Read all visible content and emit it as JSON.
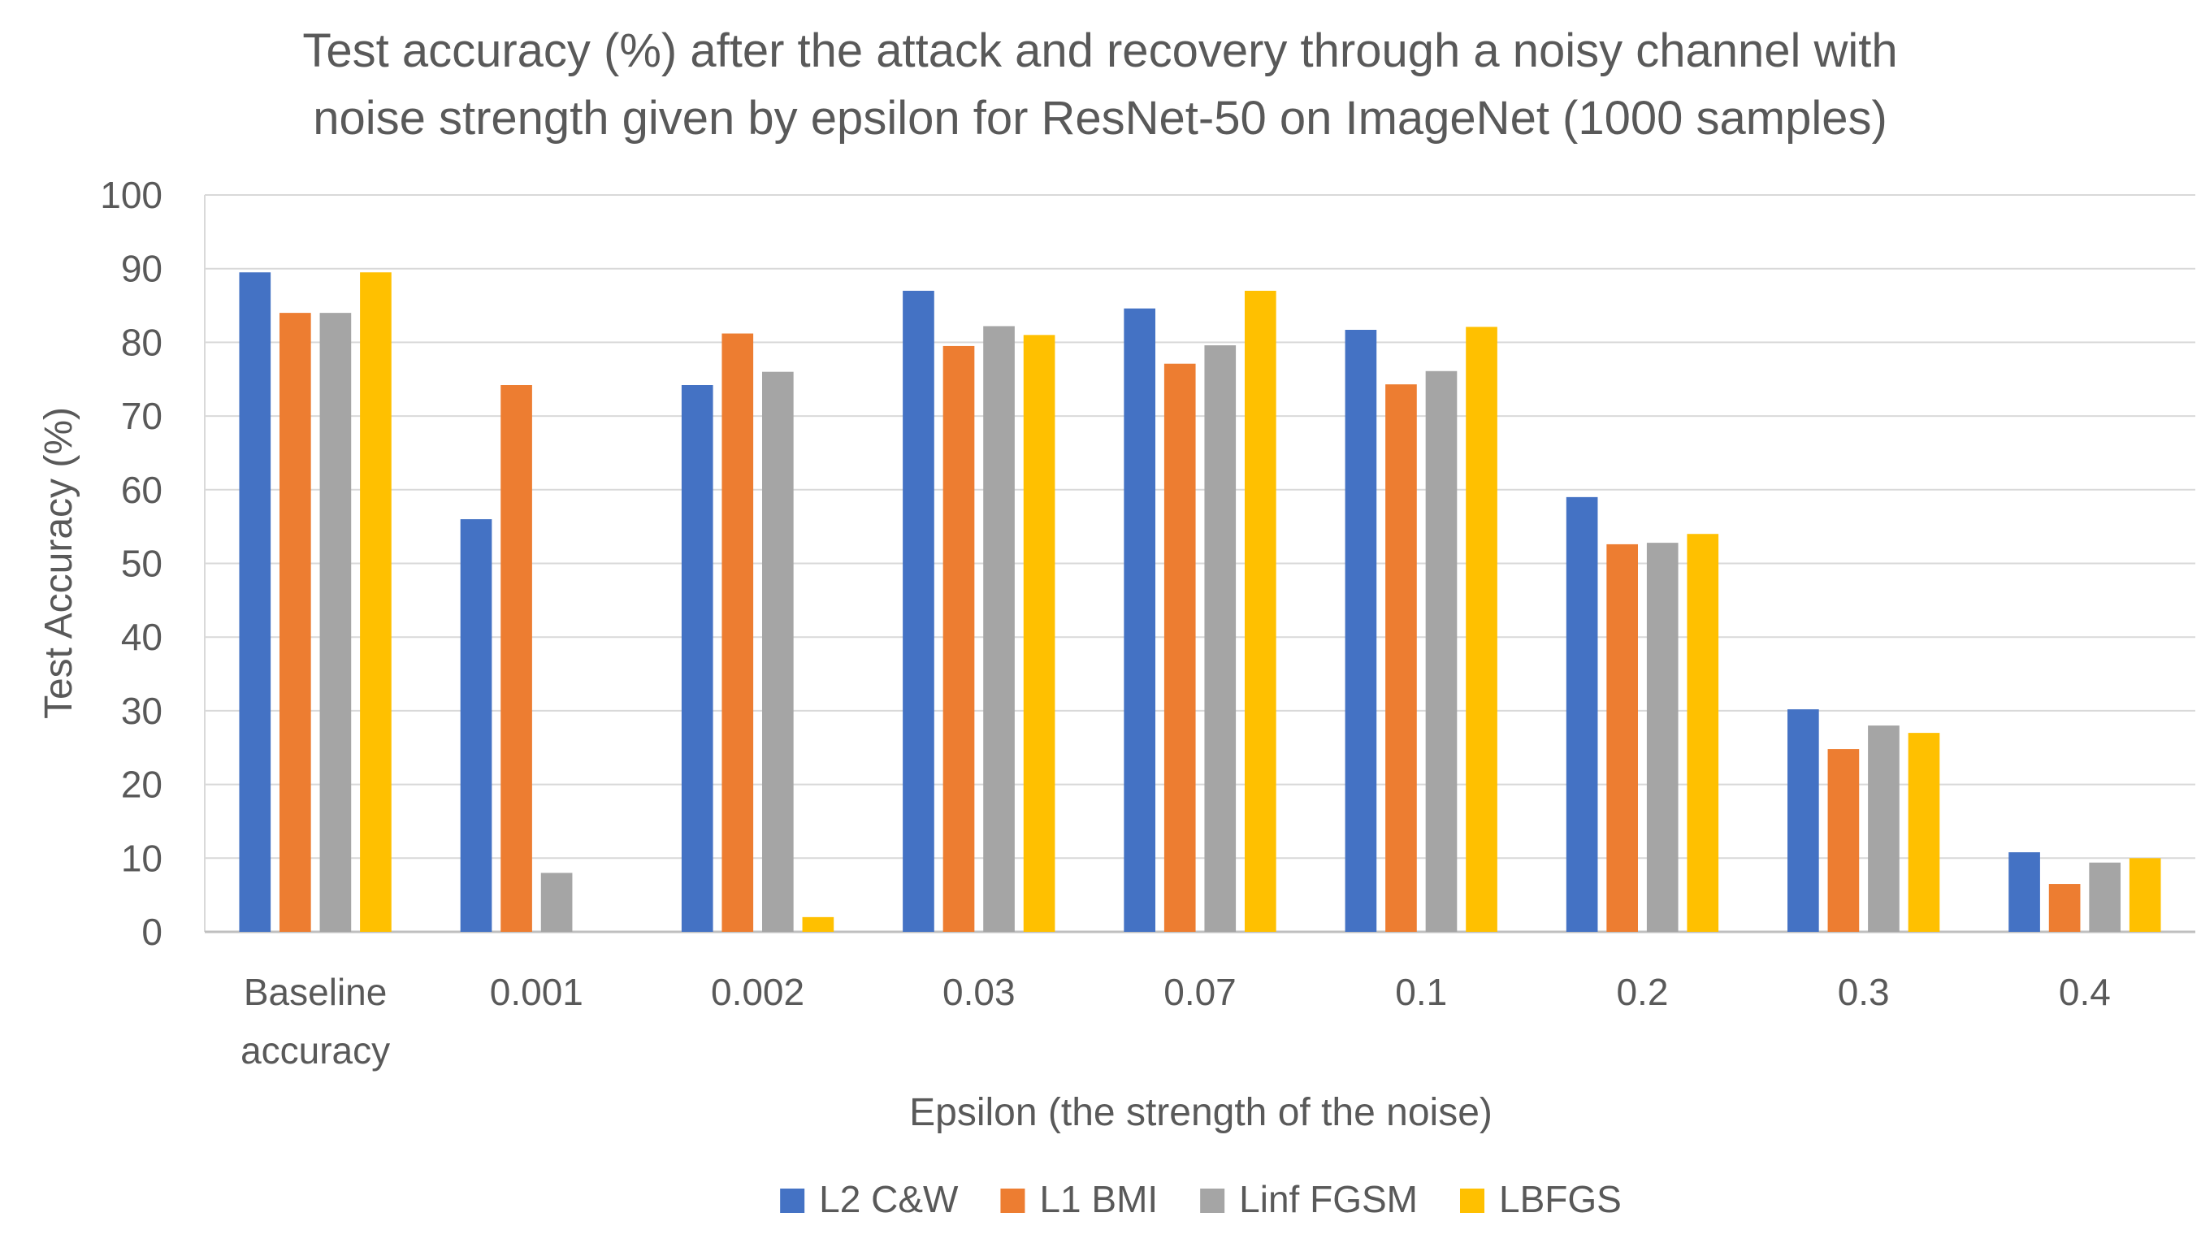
{
  "chart_data": {
    "type": "bar",
    "title_line1": "Test accuracy (%) after the attack and recovery through a noisy channel with",
    "title_line2": "noise strength given by epsilon for ResNet-50 on ImageNet (1000 samples)",
    "xlabel": "Epsilon (the strength of the noise)",
    "ylabel": "Test Accuracy (%)",
    "ylim": [
      0,
      100
    ],
    "yticks": [
      0,
      10,
      20,
      30,
      40,
      50,
      60,
      70,
      80,
      90,
      100
    ],
    "grid": true,
    "legend_position": "bottom",
    "categories": [
      [
        "Baseline",
        "accuracy"
      ],
      [
        "0.001"
      ],
      [
        "0.002"
      ],
      [
        "0.03"
      ],
      [
        "0.07"
      ],
      [
        "0.1"
      ],
      [
        "0.2"
      ],
      [
        "0.3"
      ],
      [
        "0.4"
      ]
    ],
    "series": [
      {
        "name": "L2 C&W",
        "color": "#4472C4",
        "values": [
          89.5,
          56,
          74.2,
          87,
          84.6,
          81.7,
          59,
          30.2,
          10.8
        ]
      },
      {
        "name": "L1 BMI",
        "color": "#ED7D31",
        "values": [
          84,
          74.2,
          81.2,
          79.5,
          77.1,
          74.3,
          52.6,
          24.8,
          6.5
        ]
      },
      {
        "name": "Linf FGSM",
        "color": "#A5A5A5",
        "values": [
          84,
          8,
          76,
          82.2,
          79.6,
          76.1,
          52.8,
          28,
          9.4
        ]
      },
      {
        "name": "LBFGS",
        "color": "#FFC000",
        "values": [
          89.5,
          0,
          2,
          81,
          87,
          82.1,
          54,
          27,
          10
        ]
      }
    ]
  }
}
